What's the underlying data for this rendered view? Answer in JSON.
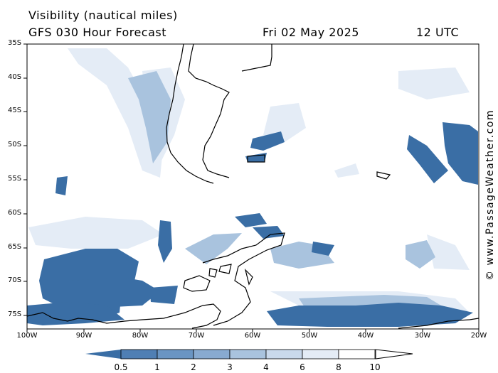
{
  "header": {
    "title": "Visibility (nautical miles)",
    "subtitle": "GFS 030 Hour Forecast",
    "date": "Fri 02 May 2025",
    "time": "12 UTC"
  },
  "credit": "© www.PassageWeather.com",
  "map": {
    "lon_range": [
      -100,
      -20
    ],
    "lat_range": [
      -77.5,
      -35
    ],
    "lat_labels": [
      "35S",
      "40S",
      "45S",
      "50S",
      "55S",
      "60S",
      "65S",
      "70S",
      "75S"
    ],
    "lon_labels": [
      "100W",
      "90W",
      "80W",
      "70W",
      "60W",
      "50W",
      "40W",
      "30W",
      "20W"
    ],
    "coastline_color": "#000000"
  },
  "colorbar": {
    "labels": [
      "0.5",
      "1",
      "2",
      "3",
      "4",
      "6",
      "8",
      "10"
    ],
    "colors": [
      "#3a6ea5",
      "#4f7fb4",
      "#6a95c3",
      "#88aad0",
      "#a9c3de",
      "#c9d9ec",
      "#e4ecf6",
      "#ffffff"
    ]
  },
  "icons": {
    "legend": "colorbar-triangle-ends"
  }
}
